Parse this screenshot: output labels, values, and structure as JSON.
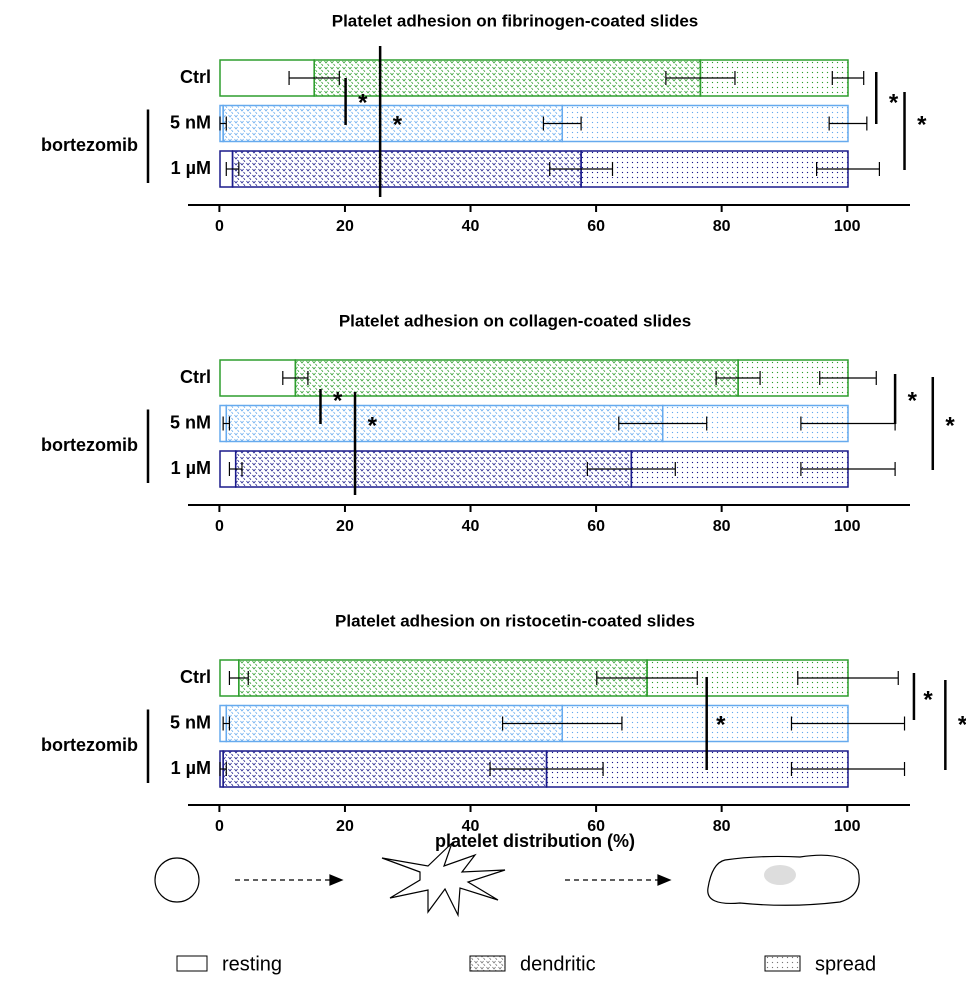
{
  "chart_data": [
    {
      "type": "bar",
      "orientation": "horizontal",
      "stacked": true,
      "title": "Platelet adhesion on fibrinogen-coated slides",
      "categories": [
        "Ctrl",
        "5 nM",
        "1 µM"
      ],
      "category_colors": [
        "#2e9e2e",
        "#66aaee",
        "#1c1c8c"
      ],
      "group": {
        "label": "bortezomib",
        "categories": [
          "5 nM",
          "1 µM"
        ]
      },
      "series": [
        {
          "name": "resting",
          "values": [
            15,
            0.5,
            2
          ],
          "errors": [
            4,
            0.5,
            1
          ]
        },
        {
          "name": "dendritic",
          "values": [
            61.5,
            54,
            55.5
          ],
          "errors": [
            5.5,
            3,
            5
          ]
        },
        {
          "name": "spread",
          "values": [
            23.5,
            45.5,
            42.5
          ],
          "errors": [
            2.5,
            3,
            5
          ]
        }
      ],
      "significance": [
        {
          "text": "*",
          "between": [
            "Ctrl",
            "5 nM"
          ]
        },
        {
          "text": "*",
          "between": [
            "Ctrl",
            "1 µM"
          ]
        },
        {
          "text": "*",
          "between": [
            "Ctrl",
            "5 nM"
          ]
        },
        {
          "text": "*",
          "between": [
            "Ctrl",
            "1 µM"
          ]
        }
      ],
      "xlim": [
        -5,
        110
      ],
      "xticks": [
        0,
        20,
        40,
        60,
        80,
        100
      ]
    },
    {
      "type": "bar",
      "orientation": "horizontal",
      "stacked": true,
      "title": "Platelet adhesion on collagen-coated slides",
      "categories": [
        "Ctrl",
        "5 nM",
        "1 µM"
      ],
      "category_colors": [
        "#2e9e2e",
        "#66aaee",
        "#1c1c8c"
      ],
      "group": {
        "label": "bortezomib",
        "categories": [
          "5 nM",
          "1 µM"
        ]
      },
      "series": [
        {
          "name": "resting",
          "values": [
            12,
            1,
            2.5
          ],
          "errors": [
            2,
            0.5,
            1
          ]
        },
        {
          "name": "dendritic",
          "values": [
            70.5,
            69.5,
            63
          ],
          "errors": [
            3.5,
            7,
            7
          ]
        },
        {
          "name": "spread",
          "values": [
            17.5,
            29.5,
            34.5
          ],
          "errors": [
            4.5,
            7.5,
            7.5
          ]
        }
      ],
      "significance": [
        {
          "text": "*",
          "between": [
            "Ctrl",
            "5 nM"
          ]
        },
        {
          "text": "*",
          "between": [
            "Ctrl",
            "1 µM"
          ]
        },
        {
          "text": "*",
          "between": [
            "Ctrl",
            "5 nM"
          ]
        },
        {
          "text": "*",
          "between": [
            "Ctrl",
            "1 µM"
          ]
        }
      ],
      "xlim": [
        -5,
        110
      ],
      "xticks": [
        0,
        20,
        40,
        60,
        80,
        100
      ]
    },
    {
      "type": "bar",
      "orientation": "horizontal",
      "stacked": true,
      "title": "Platelet adhesion on ristocetin-coated slides",
      "categories": [
        "Ctrl",
        "5 nM",
        "1 µM"
      ],
      "category_colors": [
        "#2e9e2e",
        "#66aaee",
        "#1c1c8c"
      ],
      "group": {
        "label": "bortezomib",
        "categories": [
          "5 nM",
          "1 µM"
        ]
      },
      "series": [
        {
          "name": "resting",
          "values": [
            3,
            1,
            0.5
          ],
          "errors": [
            1.5,
            0.5,
            0.5
          ]
        },
        {
          "name": "dendritic",
          "values": [
            65,
            53.5,
            51.5
          ],
          "errors": [
            8,
            9.5,
            9
          ]
        },
        {
          "name": "spread",
          "values": [
            32,
            45.5,
            48
          ],
          "errors": [
            8,
            9,
            9
          ]
        }
      ],
      "significance": [
        {
          "text": "*",
          "between": [
            "Ctrl",
            "1 µM"
          ]
        },
        {
          "text": "*",
          "between": [
            "Ctrl",
            "5 nM"
          ]
        },
        {
          "text": "*",
          "between": [
            "Ctrl",
            "1 µM"
          ]
        }
      ],
      "xlabel": "platelet distribution (%)",
      "xlim": [
        -5,
        110
      ],
      "xticks": [
        0,
        20,
        40,
        60,
        80,
        100
      ]
    }
  ]
}
